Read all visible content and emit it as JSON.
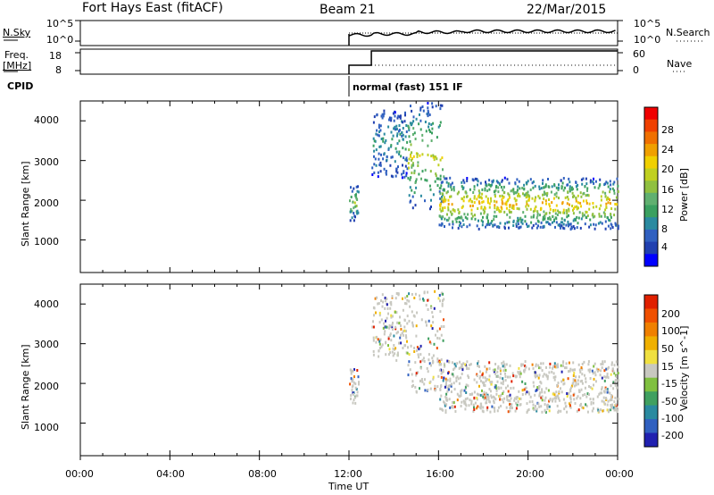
{
  "header": {
    "station": "Fort Hays East (fitACF)",
    "beam": "Beam 21",
    "date": "22/Mar/2015"
  },
  "status": {
    "nsky_label": "N.Sky",
    "nsky_ticks": [
      "10^5",
      "10^0"
    ],
    "nsearch_label": "N.Search",
    "nsearch_ticks": [
      "10^5",
      "10^0"
    ],
    "freq_label_1": "Freq.",
    "freq_label_2": "[MHz]",
    "freq_ticks": [
      "18",
      "8"
    ],
    "nave_label": "Nave",
    "nave_ticks": [
      "60",
      "0"
    ],
    "cpid_label": "CPID",
    "cpid_text": "normal (fast) 151 IF"
  },
  "axes": {
    "ylabel": "Slant Range [km]",
    "xlabel": "Time UT",
    "x_ticks": [
      "00:00",
      "04:00",
      "08:00",
      "12:00",
      "16:00",
      "20:00",
      "00:00"
    ],
    "y_ticks": [
      "4000",
      "3000",
      "2000",
      "1000"
    ],
    "y_tick_values": [
      4000,
      3000,
      2000,
      1000
    ],
    "ylim": [
      180,
      4500
    ],
    "xlim_hours": [
      0,
      24
    ]
  },
  "power_scale": {
    "label": "Power [dB]",
    "ticks": [
      "28",
      "24",
      "20",
      "16",
      "12",
      "8",
      "4"
    ],
    "colors": [
      "#0000ff",
      "#2040b0",
      "#3060c0",
      "#2a8aa0",
      "#3aa060",
      "#60b070",
      "#90c040",
      "#c0d020",
      "#f0d000",
      "#f0a000",
      "#f07000",
      "#f04000",
      "#f00000"
    ]
  },
  "velocity_scale": {
    "label": "Velocity [m s^-1]",
    "ticks": [
      "200",
      "100",
      "50",
      "15",
      "-15",
      "-50",
      "-100",
      "-200"
    ],
    "colors": [
      "#2020b0",
      "#3060c0",
      "#2a8aa0",
      "#40a060",
      "#80c040",
      "#c8c8c0",
      "#f0e040",
      "#f0b000",
      "#f08000",
      "#f05000",
      "#e02000"
    ]
  },
  "chart_data": [
    {
      "type": "heatmap",
      "title": "Power",
      "xlabel": "Time UT",
      "ylabel": "Slant Range [km]",
      "colorbar_label": "Power [dB]",
      "xlim": [
        0,
        24
      ],
      "ylim": [
        180,
        4500
      ],
      "note_regions": [
        {
          "t": [
            12.0,
            12.4
          ],
          "range": [
            1500,
            2400
          ],
          "power": 12
        },
        {
          "t": [
            13.0,
            14.6
          ],
          "range": [
            2600,
            4300
          ],
          "power": 6
        },
        {
          "t": [
            14.6,
            16.2
          ],
          "range": [
            1800,
            4500
          ],
          "power": 14
        },
        {
          "t": [
            16.0,
            24.0
          ],
          "range": [
            1300,
            2600
          ],
          "power": 18
        }
      ]
    },
    {
      "type": "heatmap",
      "title": "Velocity",
      "xlabel": "Time UT",
      "ylabel": "Slant Range [km]",
      "colorbar_label": "Velocity [m s^-1]",
      "xlim": [
        0,
        24
      ],
      "ylim": [
        180,
        4500
      ],
      "note_regions": [
        {
          "t": [
            12.0,
            12.4
          ],
          "range": [
            1500,
            2400
          ],
          "velocity": 40
        },
        {
          "t": [
            13.0,
            14.6
          ],
          "range": [
            2600,
            4300
          ],
          "velocity": 0
        },
        {
          "t": [
            14.6,
            16.2
          ],
          "range": [
            1800,
            4500
          ],
          "velocity": 0
        },
        {
          "t": [
            16.0,
            24.0
          ],
          "range": [
            1300,
            2600
          ],
          "velocity": 0
        }
      ]
    }
  ]
}
